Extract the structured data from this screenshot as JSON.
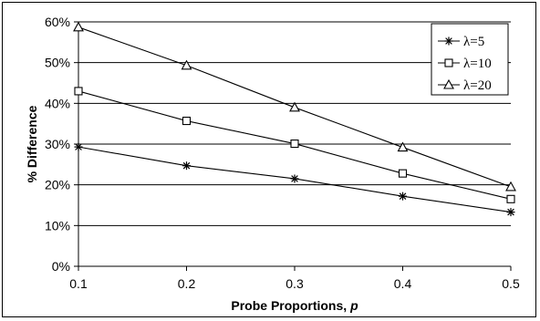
{
  "chart_data": {
    "type": "line",
    "x": [
      0.1,
      0.2,
      0.3,
      0.4,
      0.5
    ],
    "xlim": [
      0.1,
      0.5
    ],
    "ylim": [
      0,
      60
    ],
    "x_ticks": [
      "0.1",
      "0.2",
      "0.3",
      "0.4",
      "0.5"
    ],
    "y_ticks": [
      "0%",
      "10%",
      "20%",
      "30%",
      "40%",
      "50%",
      "60%"
    ],
    "xlabel_main": "Probe Proportions, ",
    "xlabel_var": "p",
    "ylabel": "% Difference",
    "grid": "horizontal",
    "legend_position": "top-right",
    "series": [
      {
        "name": "λ=5",
        "marker": "star",
        "values": [
          29.3,
          24.7,
          21.5,
          17.2,
          13.3
        ]
      },
      {
        "name": "λ=10",
        "marker": "square",
        "values": [
          43.0,
          35.7,
          30.1,
          22.8,
          16.5
        ]
      },
      {
        "name": "λ=20",
        "marker": "triangle",
        "values": [
          58.7,
          49.3,
          39.0,
          29.2,
          19.5
        ]
      }
    ]
  }
}
